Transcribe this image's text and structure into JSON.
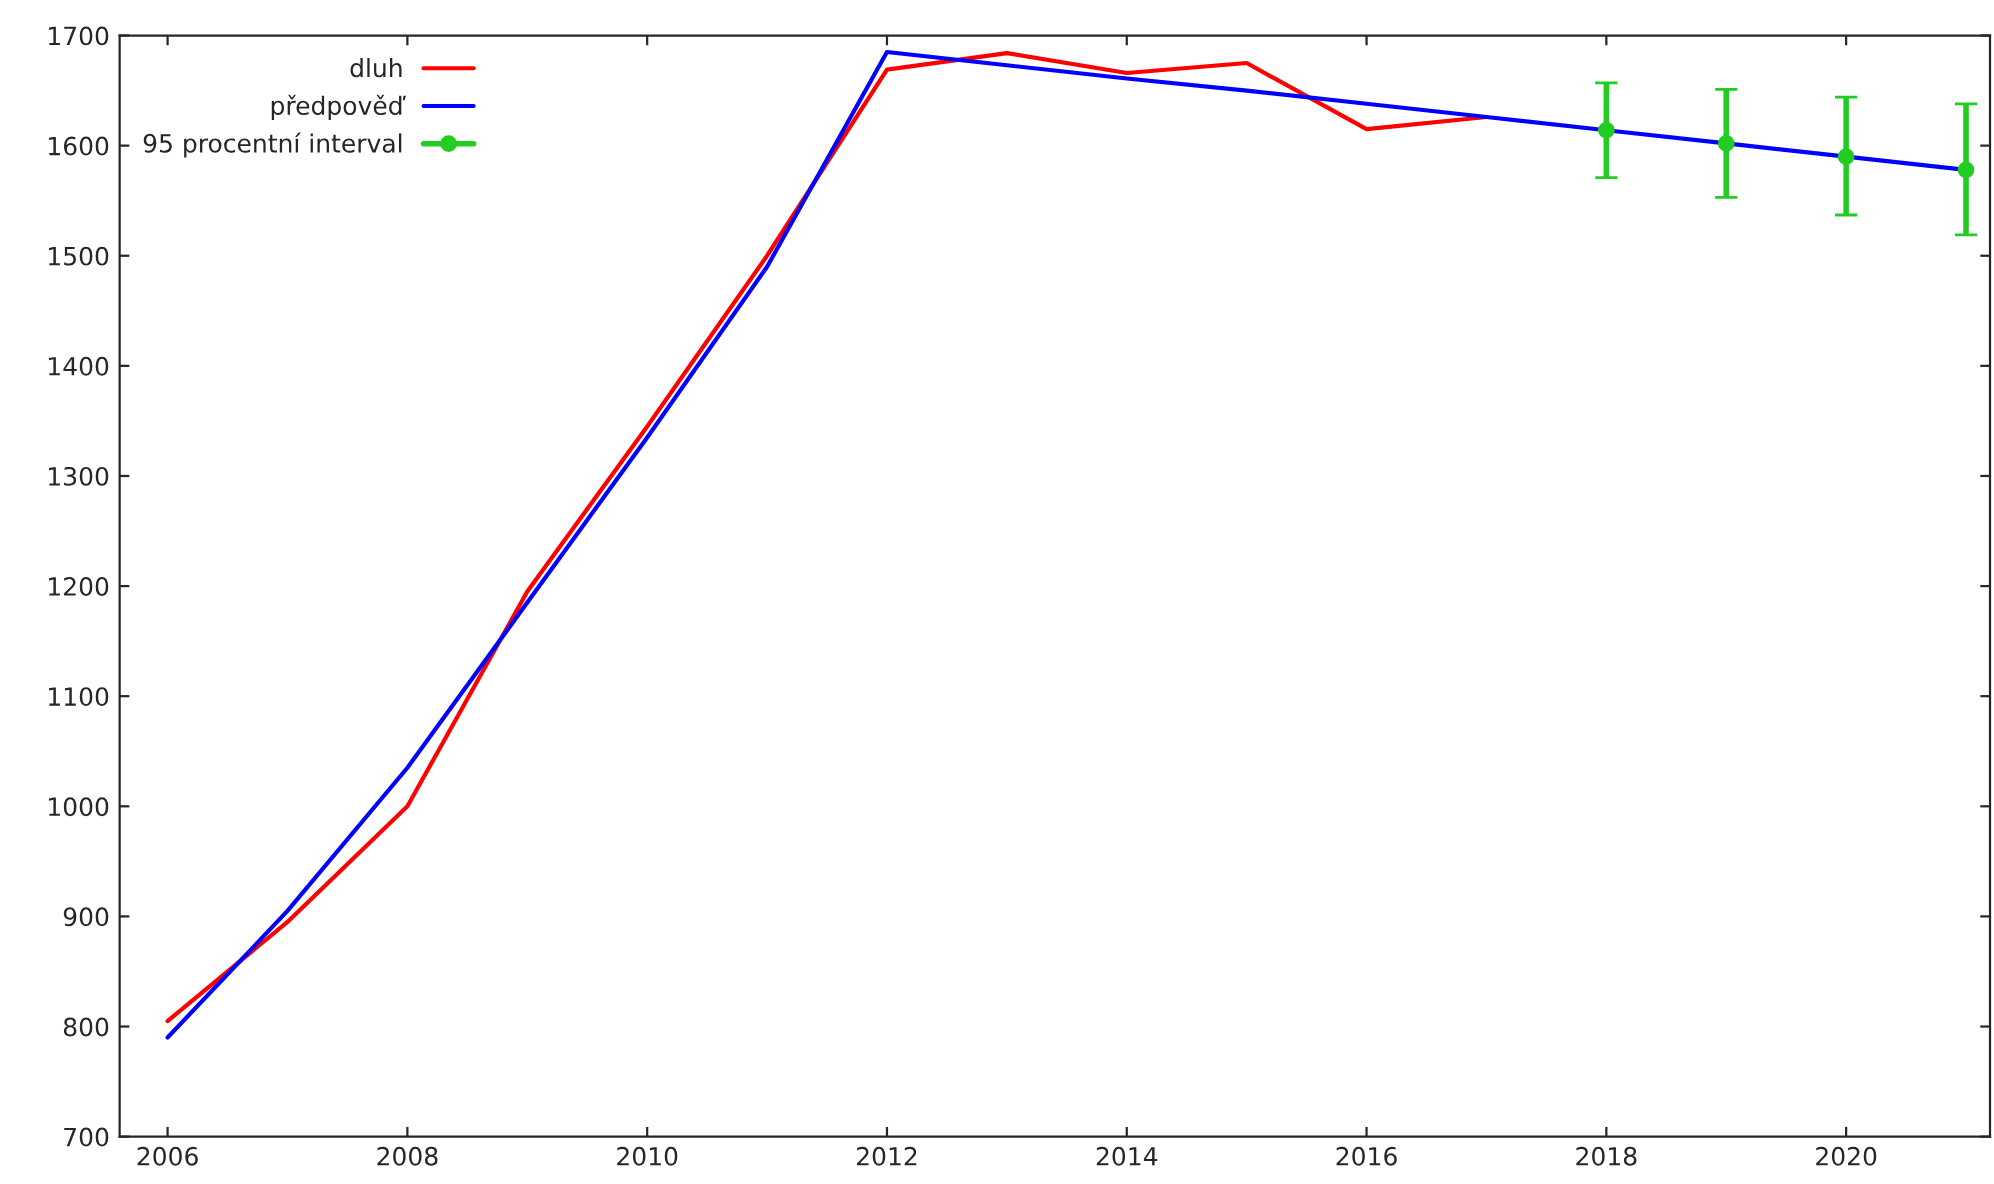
{
  "chart_data": {
    "type": "line",
    "xlim": [
      2005.6,
      2021.2
    ],
    "xticks": [
      2006,
      2008,
      2010,
      2012,
      2014,
      2016,
      2018,
      2020
    ],
    "ylim": [
      700,
      1700
    ],
    "yticks": [
      700,
      800,
      900,
      1000,
      1100,
      1200,
      1300,
      1400,
      1500,
      1600,
      1700
    ],
    "grid": false,
    "legend": "top left",
    "series": [
      {
        "name": "dluh",
        "color": "#ff0000",
        "x": [
          2006,
          2007,
          2008,
          2009,
          2010,
          2011,
          2012,
          2013,
          2014,
          2015,
          2016,
          2017
        ],
        "values": [
          805,
          895,
          1000,
          1195,
          1345,
          1500,
          1669,
          1684,
          1666,
          1675,
          1615,
          1626
        ]
      },
      {
        "name": "předpověď",
        "color": "#0000ff",
        "x": [
          2006,
          2007,
          2008,
          2009,
          2010,
          2011,
          2012,
          2013,
          2014,
          2015,
          2016,
          2017,
          2018,
          2019,
          2020,
          2021
        ],
        "values": [
          790,
          905,
          1035,
          1185,
          1335,
          1490,
          1685,
          1673,
          1661,
          1650,
          1638,
          1626,
          1614,
          1602,
          1590,
          1578
        ]
      },
      {
        "name": "95 procentní interval",
        "type": "scatter",
        "marker": "circle",
        "color": "#22cc22",
        "x": [
          2018,
          2019,
          2020,
          2021
        ],
        "values": [
          1614,
          1602,
          1590,
          1578
        ],
        "errors": [
          [
            1571,
            1657
          ],
          [
            1553,
            1651
          ],
          [
            1537,
            1644
          ],
          [
            1519,
            1638
          ]
        ]
      }
    ]
  }
}
